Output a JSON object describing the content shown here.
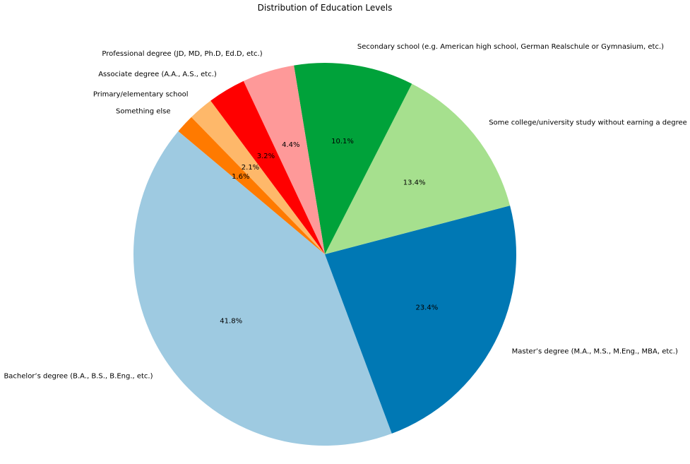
{
  "chart_data": {
    "type": "pie",
    "title": "Distribution of Education Levels",
    "start_angle_deg": 140,
    "direction": "counterclockwise",
    "slices": [
      {
        "label": "Bachelor’s degree (B.A., B.S., B.Eng., etc.)",
        "value": 41.8,
        "pct_label": "41.8%",
        "color": "#9ecae1"
      },
      {
        "label": "Master’s degree (M.A., M.S., M.Eng., MBA, etc.)",
        "value": 23.4,
        "pct_label": "23.4%",
        "color": "#0078b4"
      },
      {
        "label": "Some college/university study without earning a degree",
        "value": 13.4,
        "pct_label": "13.4%",
        "color": "#a6e08e"
      },
      {
        "label": "Secondary school (e.g. American high school, German Realschule or Gymnasium, etc.)",
        "value": 10.1,
        "pct_label": "10.1%",
        "color": "#00a23a"
      },
      {
        "label": "Professional degree (JD, MD, Ph.D, Ed.D, etc.)",
        "value": 4.4,
        "pct_label": "4.4%",
        "color": "#fe9999"
      },
      {
        "label": "Associate degree (A.A., A.S., etc.)",
        "value": 3.2,
        "pct_label": "3.2%",
        "color": "#ff0000"
      },
      {
        "label": "Primary/elementary school",
        "value": 2.1,
        "pct_label": "2.1%",
        "color": "#feb86a"
      },
      {
        "label": "Something else",
        "value": 1.6,
        "pct_label": "1.6%",
        "color": "#ff7a00"
      }
    ]
  }
}
